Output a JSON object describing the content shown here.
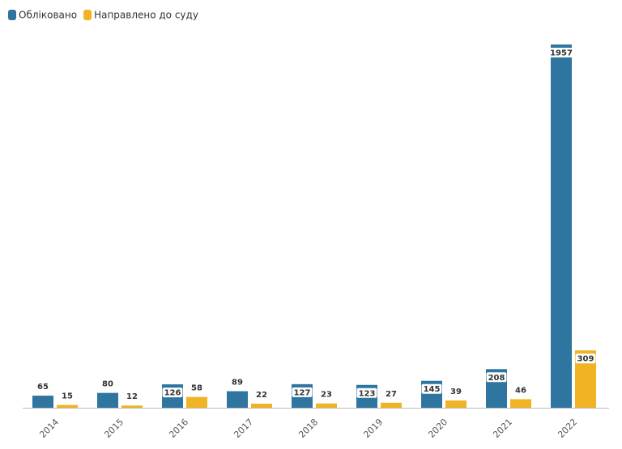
{
  "chart_data": {
    "type": "bar",
    "categories": [
      "2014",
      "2015",
      "2016",
      "2017",
      "2018",
      "2019",
      "2020",
      "2021",
      "2022"
    ],
    "series": [
      {
        "name": "Обліковано",
        "color": "#2e75a0",
        "values": [
          65,
          80,
          126,
          89,
          127,
          123,
          145,
          208,
          1957
        ]
      },
      {
        "name": "Направлено до суду",
        "color": "#f0b323",
        "values": [
          15,
          12,
          58,
          22,
          23,
          27,
          39,
          46,
          309
        ]
      }
    ],
    "legend": "top-left"
  }
}
